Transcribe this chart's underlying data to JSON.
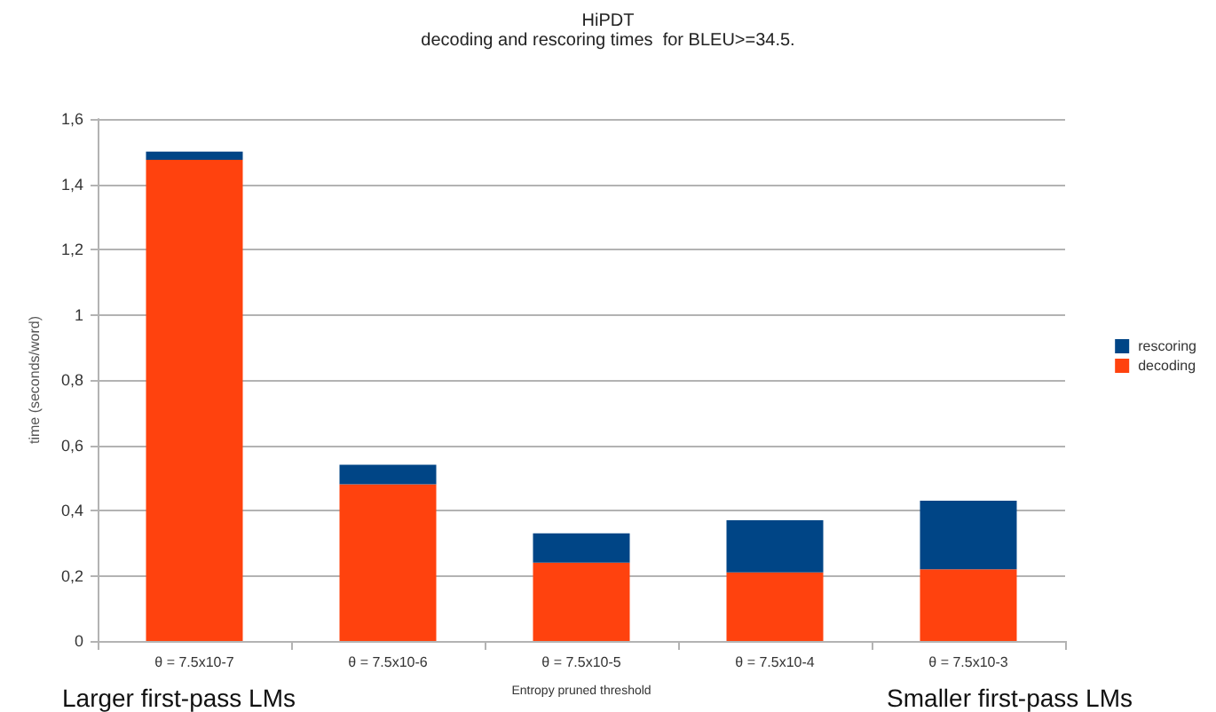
{
  "chart_data": {
    "type": "bar",
    "title": "HiPDT",
    "subtitle": "decoding and rescoring times  for BLEU>=34.5.",
    "xlabel": "Entropy pruned threshold",
    "ylabel": "time (seconds/word)",
    "categories": [
      "θ = 7.5x10-7",
      "θ = 7.5x10-6",
      "θ = 7.5x10-5",
      "θ = 7.5x10-4",
      "θ = 7.5x10-3"
    ],
    "stacked": true,
    "series": [
      {
        "name": "decoding",
        "color": "#ff420e",
        "values": [
          1.475,
          0.48,
          0.24,
          0.21,
          0.22
        ]
      },
      {
        "name": "rescoring",
        "color": "#004586",
        "values": [
          0.025,
          0.06,
          0.09,
          0.16,
          0.21
        ]
      }
    ],
    "ylim": [
      0,
      1.6
    ],
    "yticks": [
      0,
      {
        "value": 0.2,
        "label": "0,2"
      },
      {
        "value": 0.4,
        "label": "0,4"
      },
      {
        "value": 0.6,
        "label": "0,6"
      },
      {
        "value": 0.8,
        "label": "0,8"
      },
      1,
      {
        "value": 1.2,
        "label": "1,2"
      },
      {
        "value": 1.4,
        "label": "1,4"
      },
      {
        "value": 1.6,
        "label": "1,6"
      }
    ],
    "grid": "y",
    "legend": "right",
    "annotations": [
      "Larger first-pass LMs",
      "Smaller first-pass LMs"
    ]
  }
}
